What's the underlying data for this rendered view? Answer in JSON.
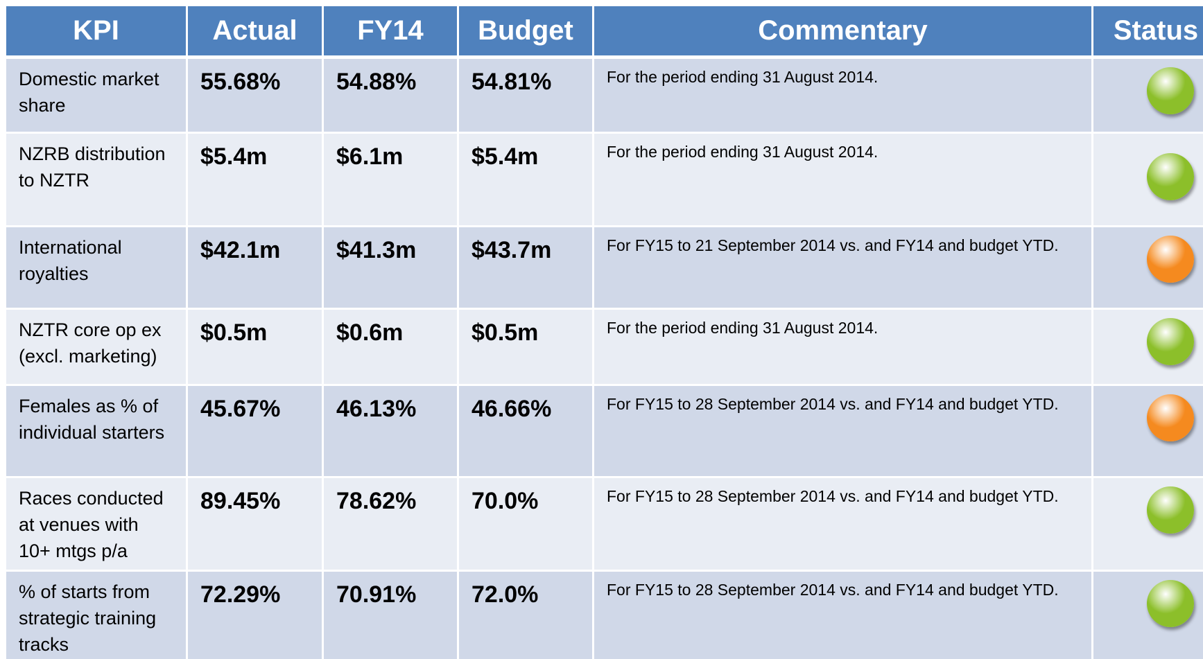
{
  "header": [
    "KPI",
    "Actual",
    "FY14",
    "Budget",
    "Commentary",
    "Status"
  ],
  "rows": [
    {
      "kpi": "Domestic market share",
      "actual": "55.68%",
      "fy14": "54.88%",
      "budget": "54.81%",
      "commentary": "For the period ending 31 August 2014.",
      "status_color": "#8cbf2a"
    },
    {
      "kpi": "NZRB distribution  to NZTR",
      "actual": "$5.4m",
      "fy14": "$6.1m",
      "budget": "$5.4m",
      "commentary": "For the period ending 31 August 2014.",
      "status_color": "#8cbf2a"
    },
    {
      "kpi": "International royalties",
      "actual": "$42.1m",
      "fy14": "$41.3m",
      "budget": "$43.7m",
      "commentary": "For FY15 to 21 September 2014 vs. and FY14 and budget YTD.",
      "status_color": "#f58a1f"
    },
    {
      "kpi": "NZTR core op ex (excl. marketing)",
      "actual": "$0.5m",
      "fy14": "$0.6m",
      "budget": "$0.5m",
      "commentary": "For the period ending 31 August 2014.",
      "status_color": "#8cbf2a"
    },
    {
      "kpi": "Females as % of individual starters",
      "actual": "45.67%",
      "fy14": "46.13%",
      "budget": "46.66%",
      "commentary": "For FY15 to 28 September 2014 vs. and FY14 and budget YTD.",
      "status_color": "#f58a1f"
    },
    {
      "kpi": "Races conducted at venues with 10+ mtgs p/a",
      "actual": "89.45%",
      "fy14": "78.62%",
      "budget": "70.0%",
      "commentary": "For FY15 to 28 September 2014 vs. and FY14 and budget YTD.",
      "status_color": "#8cbf2a"
    },
    {
      "kpi": "% of starts from strategic training tracks",
      "actual": "72.29%",
      "fy14": "70.91%",
      "budget": "72.0%",
      "commentary": "For FY15 to 28 September 2014 vs. and FY14 and budget YTD.",
      "status_color": "#8cbf2a"
    }
  ]
}
